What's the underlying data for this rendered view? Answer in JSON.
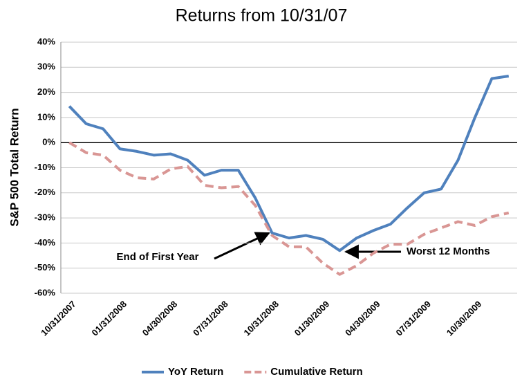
{
  "chart_data": {
    "type": "line",
    "title": "Returns from 10/31/07",
    "y_label": "S&P 500 Total Return",
    "categories": [
      "10/31/2007",
      null,
      null,
      "01/31/2008",
      null,
      null,
      "04/30/2008",
      null,
      null,
      "07/31/2008",
      null,
      null,
      "10/31/2008",
      null,
      null,
      "01/30/2009",
      null,
      null,
      "04/30/2009",
      null,
      null,
      "07/31/2009",
      null,
      null,
      "10/30/2009",
      null,
      null
    ],
    "series": [
      {
        "name": "YoY Return",
        "color": "#4f81bd",
        "dashed": false,
        "values": [
          14.5,
          7.5,
          5.5,
          -2.5,
          -3.5,
          -5,
          -4.5,
          -7,
          -13,
          -11,
          -11,
          -22,
          -36,
          -38,
          -37,
          -38.5,
          -43,
          -38,
          -35,
          -32.5,
          -26,
          -20,
          -18.5,
          -7,
          10,
          25.5,
          26.5
        ]
      },
      {
        "name": "Cumulative Return",
        "color": "#d99694",
        "dashed": true,
        "values": [
          0,
          -4,
          -5,
          -11,
          -14,
          -14.5,
          -10.5,
          -9.5,
          -17,
          -18,
          -17.5,
          -25,
          -37,
          -41.5,
          -41.5,
          -48,
          -52.5,
          -49,
          -44,
          -40.5,
          -40.5,
          -36.5,
          -34,
          -31.5,
          -33,
          -29.5,
          -28
        ]
      }
    ],
    "ylim": [
      -60,
      40
    ],
    "yticks": [
      {
        "value": -60,
        "label": "-60%"
      },
      {
        "value": -50,
        "label": "-50%"
      },
      {
        "value": -40,
        "label": "-40%"
      },
      {
        "value": -30,
        "label": "-30%"
      },
      {
        "value": -20,
        "label": "-20%"
      },
      {
        "value": -10,
        "label": "-10%"
      },
      {
        "value": 0,
        "label": "0%"
      },
      {
        "value": 10,
        "label": "10%"
      },
      {
        "value": 20,
        "label": "20%"
      },
      {
        "value": 30,
        "label": "30%"
      },
      {
        "value": 40,
        "label": "40%"
      }
    ],
    "grid": true,
    "legend": "bottom",
    "annotations": [
      {
        "text": "End of First Year"
      },
      {
        "text": "Worst 12 Months"
      }
    ]
  }
}
